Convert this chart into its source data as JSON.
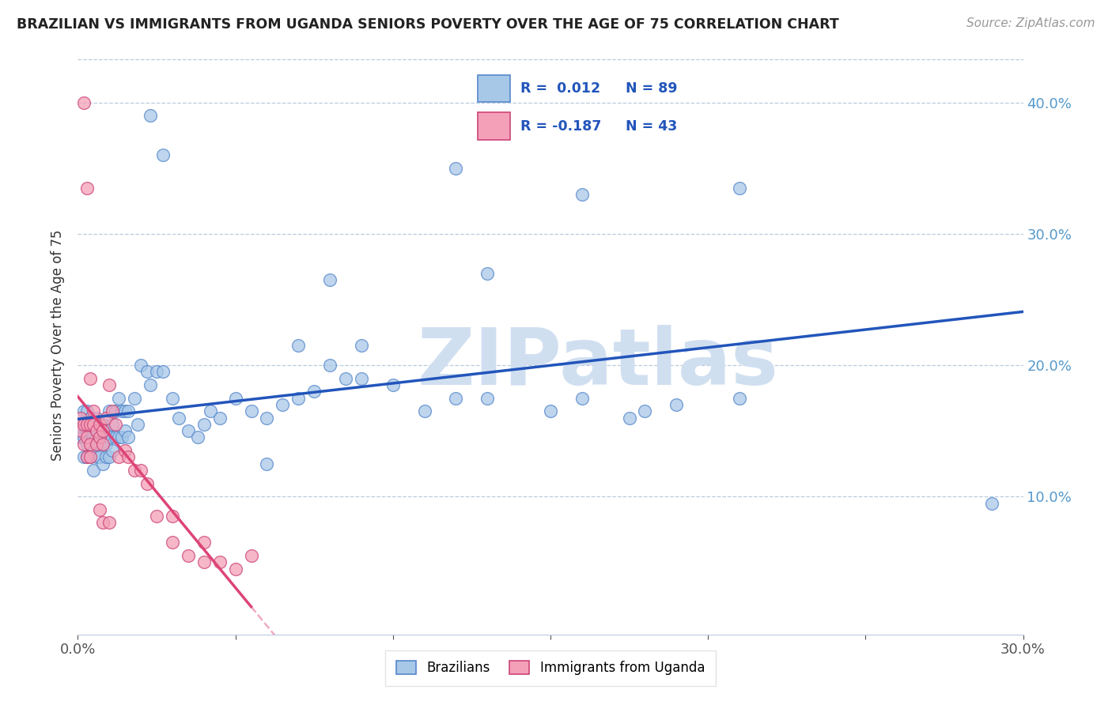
{
  "title": "BRAZILIAN VS IMMIGRANTS FROM UGANDA SENIORS POVERTY OVER THE AGE OF 75 CORRELATION CHART",
  "source": "Source: ZipAtlas.com",
  "ylabel": "Seniors Poverty Over the Age of 75",
  "xlim": [
    0.0,
    0.3
  ],
  "ylim": [
    -0.005,
    0.435
  ],
  "yticks": [
    0.0,
    0.1,
    0.2,
    0.3,
    0.4
  ],
  "xticks": [
    0.0,
    0.05,
    0.1,
    0.15,
    0.2,
    0.25,
    0.3
  ],
  "xtick_labels": [
    "0.0%",
    "",
    "",
    "",
    "",
    "",
    "30.0%"
  ],
  "ytick_labels_right": [
    "",
    "10.0%",
    "20.0%",
    "30.0%",
    "40.0%"
  ],
  "R_brazil": 0.012,
  "N_brazil": 89,
  "R_uganda": -0.187,
  "N_uganda": 43,
  "brazil_color": "#A8C8E8",
  "uganda_color": "#F4A0B8",
  "brazil_edge_color": "#5588CC",
  "uganda_edge_color": "#CC4477",
  "brazil_line_color": "#2255BB",
  "uganda_line_color": "#DD4477",
  "watermark": "ZIPatlas",
  "watermark_color": "#D0DFF0",
  "brazil_x": [
    0.001,
    0.001,
    0.002,
    0.002,
    0.002,
    0.003,
    0.003,
    0.003,
    0.003,
    0.004,
    0.004,
    0.004,
    0.004,
    0.005,
    0.005,
    0.005,
    0.005,
    0.006,
    0.006,
    0.006,
    0.006,
    0.007,
    0.007,
    0.007,
    0.008,
    0.008,
    0.008,
    0.009,
    0.009,
    0.009,
    0.01,
    0.01,
    0.01,
    0.011,
    0.011,
    0.012,
    0.012,
    0.013,
    0.013,
    0.014,
    0.014,
    0.015,
    0.015,
    0.016,
    0.016,
    0.018,
    0.019,
    0.02,
    0.022,
    0.023,
    0.025,
    0.027,
    0.03,
    0.032,
    0.035,
    0.038,
    0.04,
    0.042,
    0.045,
    0.05,
    0.055,
    0.06,
    0.065,
    0.07,
    0.075,
    0.08,
    0.085,
    0.09,
    0.1,
    0.11,
    0.12,
    0.13,
    0.15,
    0.16,
    0.175,
    0.18,
    0.19,
    0.21,
    0.29,
    0.023,
    0.027,
    0.12,
    0.16,
    0.21,
    0.13,
    0.08,
    0.09,
    0.07,
    0.06
  ],
  "brazil_y": [
    0.155,
    0.145,
    0.165,
    0.145,
    0.13,
    0.15,
    0.14,
    0.165,
    0.13,
    0.15,
    0.14,
    0.16,
    0.13,
    0.155,
    0.145,
    0.135,
    0.12,
    0.16,
    0.145,
    0.15,
    0.13,
    0.155,
    0.14,
    0.13,
    0.155,
    0.145,
    0.125,
    0.15,
    0.14,
    0.13,
    0.165,
    0.145,
    0.13,
    0.155,
    0.135,
    0.165,
    0.145,
    0.175,
    0.145,
    0.165,
    0.145,
    0.165,
    0.15,
    0.165,
    0.145,
    0.175,
    0.155,
    0.2,
    0.195,
    0.185,
    0.195,
    0.195,
    0.175,
    0.16,
    0.15,
    0.145,
    0.155,
    0.165,
    0.16,
    0.175,
    0.165,
    0.16,
    0.17,
    0.175,
    0.18,
    0.2,
    0.19,
    0.19,
    0.185,
    0.165,
    0.175,
    0.175,
    0.165,
    0.175,
    0.16,
    0.165,
    0.17,
    0.175,
    0.095,
    0.39,
    0.36,
    0.35,
    0.33,
    0.335,
    0.27,
    0.265,
    0.215,
    0.215,
    0.125
  ],
  "uganda_x": [
    0.001,
    0.001,
    0.002,
    0.002,
    0.003,
    0.003,
    0.003,
    0.004,
    0.004,
    0.004,
    0.005,
    0.005,
    0.006,
    0.006,
    0.007,
    0.007,
    0.008,
    0.008,
    0.009,
    0.01,
    0.011,
    0.012,
    0.013,
    0.015,
    0.016,
    0.018,
    0.02,
    0.022,
    0.025,
    0.03,
    0.035,
    0.04,
    0.045,
    0.05,
    0.055,
    0.002,
    0.003,
    0.004,
    0.007,
    0.008,
    0.01,
    0.03,
    0.04
  ],
  "uganda_y": [
    0.16,
    0.15,
    0.155,
    0.14,
    0.155,
    0.145,
    0.13,
    0.155,
    0.14,
    0.13,
    0.165,
    0.155,
    0.15,
    0.14,
    0.155,
    0.145,
    0.15,
    0.14,
    0.16,
    0.185,
    0.165,
    0.155,
    0.13,
    0.135,
    0.13,
    0.12,
    0.12,
    0.11,
    0.085,
    0.085,
    0.055,
    0.05,
    0.05,
    0.045,
    0.055,
    0.4,
    0.335,
    0.19,
    0.09,
    0.08,
    0.08,
    0.065,
    0.065
  ]
}
